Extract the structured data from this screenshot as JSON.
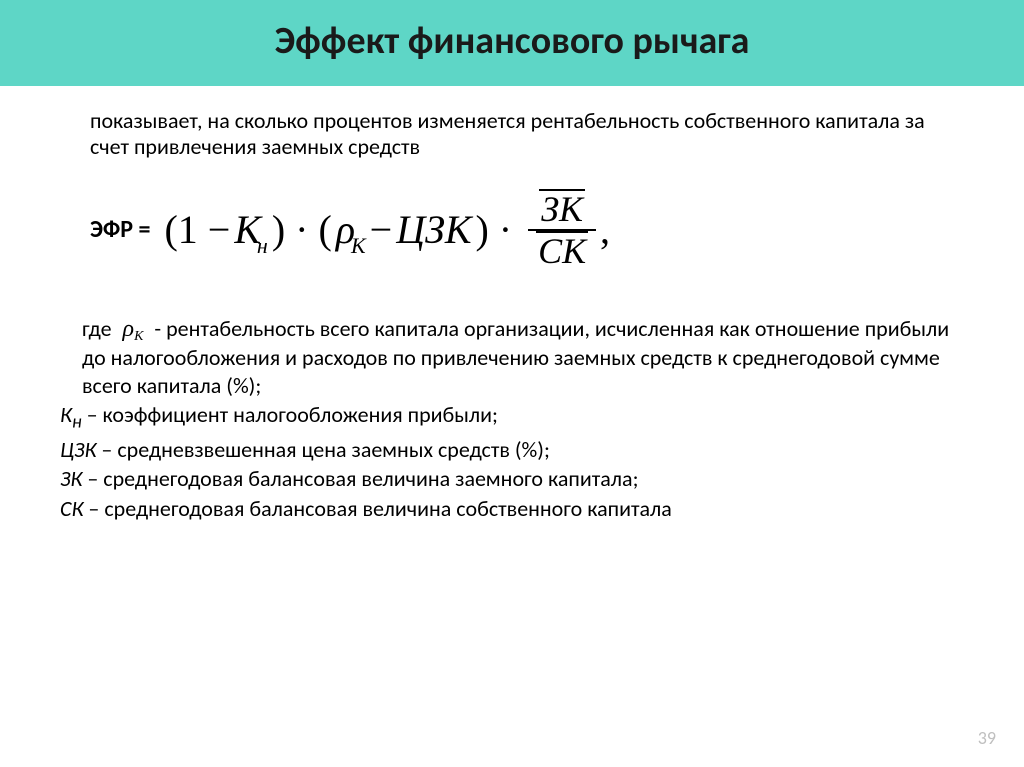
{
  "colors": {
    "title_bg": "#5ed6c6",
    "title_text": "#1a1a1a",
    "body_text": "#000000",
    "page_num": "#bfbfbf"
  },
  "title": "Эффект финансового рычага",
  "intro": "показывает, на сколько процентов изменяется рентабельность собственного капитала за счет привлечения заемных средств",
  "formula": {
    "lhs": "ЭФР =",
    "open": "(1 −",
    "Kn_K": "К",
    "Kn_n": "н",
    "close1": ")",
    "dot": "·",
    "open2": "(",
    "rho": "ρ",
    "rho_sub": "К",
    "minus": "−",
    "czk": "ЦЗК",
    "close2": ")",
    "frac_num": "ЗК",
    "frac_den": "СК",
    "comma": ","
  },
  "where_label": "где",
  "defs": {
    "rho_text": " - рентабельность всего капитала организации, исчисленная как отношение прибыли до налогообложения и расходов по привлечению заемных средств к среднегодовой сумме всего капитала (%);",
    "kn_sym": "К",
    "kn_sub": "н",
    "kn_text": " – коэффициент налогообложения прибыли;",
    "czk_sym": "ЦЗК",
    "czk_text": " – средневзвешенная цена заемных средств (%);",
    "zk_sym": "ЗК",
    "zk_text": " – среднегодовая балансовая величина заемного капитала;",
    "sk_sym": "СК",
    "sk_text": " – среднегодовая балансовая величина собственного капитала"
  },
  "page_number": "39"
}
